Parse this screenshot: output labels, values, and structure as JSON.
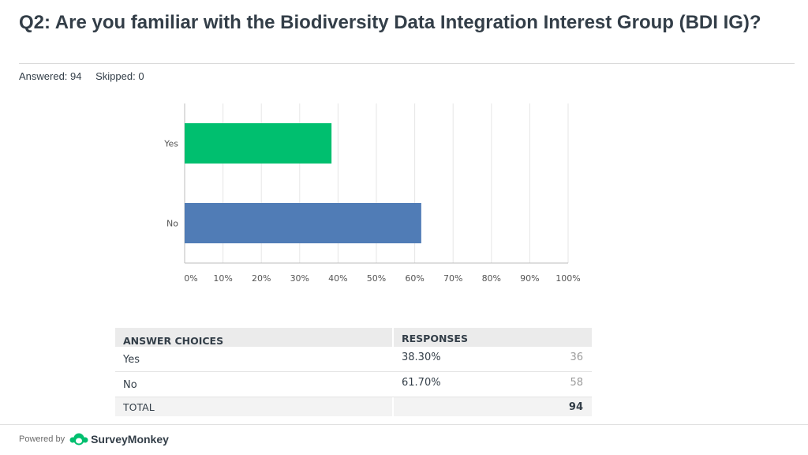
{
  "question": {
    "title": "Q2: Are you familiar with the Biodiversity Data Integration Interest Group (BDI IG)?",
    "answered": "Answered: 94",
    "skipped": "Skipped: 0"
  },
  "chart_data": {
    "type": "bar",
    "orientation": "horizontal",
    "categories": [
      "Yes",
      "No"
    ],
    "values": [
      38.3,
      61.7
    ],
    "colors": [
      "#00bf6f",
      "#507cb6"
    ],
    "xlim": [
      0,
      100
    ],
    "ticks": [
      "0%",
      "10%",
      "20%",
      "30%",
      "40%",
      "50%",
      "60%",
      "70%",
      "80%",
      "90%",
      "100%"
    ],
    "grid": true
  },
  "table": {
    "header": {
      "choices": "ANSWER CHOICES",
      "responses": "RESPONSES"
    },
    "rows": [
      {
        "choice": "Yes",
        "percent": "38.30%",
        "count": "36"
      },
      {
        "choice": "No",
        "percent": "61.70%",
        "count": "58"
      }
    ],
    "total": {
      "label": "TOTAL",
      "count": "94"
    }
  },
  "footer": {
    "powered_by": "Powered by",
    "brand": "SurveyMonkey",
    "brand_icon": "surveymonkey-logo-icon"
  }
}
